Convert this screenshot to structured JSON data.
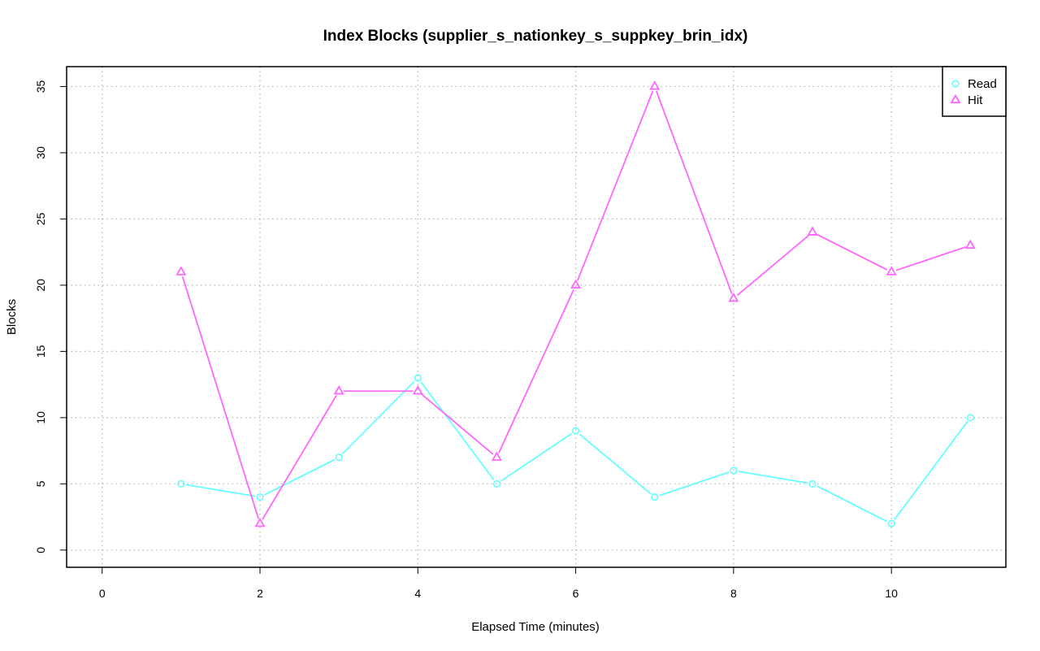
{
  "chart_data": {
    "type": "line",
    "title": "Index Blocks (supplier_s_nationkey_s_suppkey_brin_idx)",
    "xlabel": "Elapsed Time (minutes)",
    "ylabel": "Blocks",
    "xlim": [
      -0.45,
      11.45
    ],
    "ylim": [
      -1.3,
      36.5
    ],
    "x_ticks": [
      0,
      2,
      4,
      6,
      8,
      10
    ],
    "y_ticks": [
      0,
      5,
      10,
      15,
      20,
      25,
      30,
      35
    ],
    "grid": true,
    "legend_position": "top-right",
    "x": [
      1,
      2,
      3,
      4,
      5,
      6,
      7,
      8,
      9,
      10,
      11
    ],
    "series": [
      {
        "name": "Read",
        "color": "#66ffff",
        "marker": "circle",
        "values": [
          5,
          4,
          7,
          13,
          5,
          9,
          4,
          6,
          5,
          2,
          10
        ]
      },
      {
        "name": "Hit",
        "color": "#ff66ff",
        "marker": "triangle",
        "values": [
          21,
          2,
          12,
          12,
          7,
          20,
          35,
          19,
          24,
          21,
          23
        ]
      }
    ]
  }
}
